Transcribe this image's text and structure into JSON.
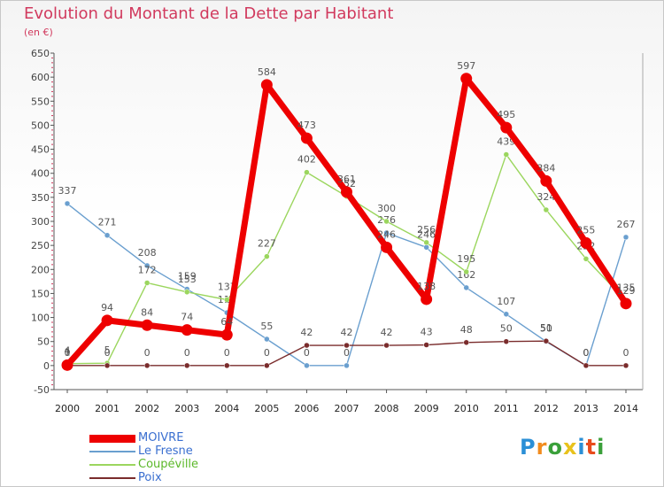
{
  "title": "Evolution du Montant de la Dette par Habitant",
  "unit": "(en €)",
  "logo": {
    "text": "Proxiti",
    "colors": [
      "#2b8fd6",
      "#f28c1e",
      "#3aa03a",
      "#e8c21c",
      "#2b8fd6",
      "#e84b1c",
      "#3aa03a"
    ]
  },
  "chart_data": {
    "type": "line",
    "x": [
      "2000",
      "2001",
      "2002",
      "2003",
      "2004",
      "2005",
      "2006",
      "2007",
      "2008",
      "2009",
      "2010",
      "2011",
      "2012",
      "2013",
      "2014"
    ],
    "ylim": [
      -50,
      650
    ],
    "yticks": [
      -50,
      0,
      50,
      100,
      150,
      200,
      250,
      300,
      350,
      400,
      450,
      500,
      550,
      600,
      650
    ],
    "grid": false,
    "legend_position": "bottom-left",
    "series": [
      {
        "name": "Le Fresne",
        "color": "#6a9fcf",
        "values": [
          337,
          271,
          208,
          159,
          110,
          55,
          0,
          0,
          276,
          246,
          162,
          107,
          50,
          0,
          267
        ]
      },
      {
        "name": "Coupéville",
        "color": "#9bd65e",
        "values": [
          4,
          5,
          172,
          153,
          137,
          227,
          402,
          352,
          300,
          256,
          195,
          439,
          324,
          222,
          135
        ]
      },
      {
        "name": "Poix",
        "color": "#7a2c2c",
        "values": [
          0,
          0,
          0,
          0,
          0,
          0,
          42,
          42,
          42,
          43,
          48,
          50,
          51,
          0,
          0
        ]
      },
      {
        "name": "MOIVRE",
        "color": "#ee0000",
        "values": [
          1,
          94,
          84,
          74,
          64,
          584,
          473,
          361,
          246,
          138,
          597,
          495,
          384,
          255,
          129
        ]
      }
    ]
  }
}
